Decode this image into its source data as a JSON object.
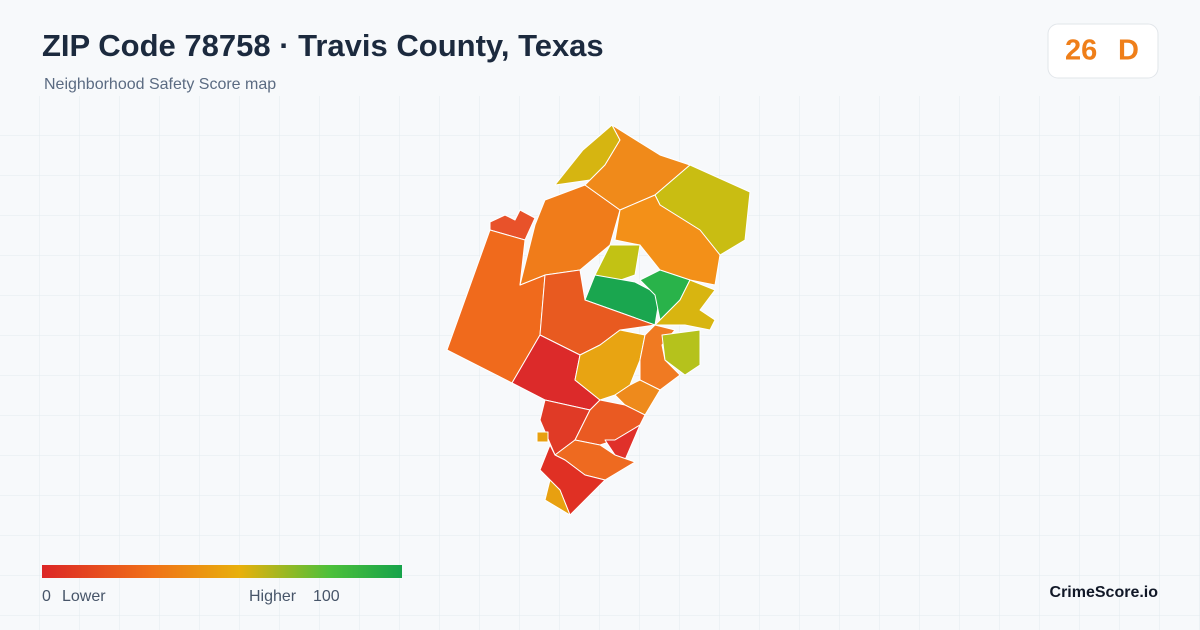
{
  "header": {
    "title": "ZIP Code 78758 · Travis County, Texas",
    "subtitle": "Neighborhood Safety Score map"
  },
  "score": {
    "value": 26,
    "grade": "D"
  },
  "legend": {
    "min": 0,
    "min_label": "Lower",
    "max_label": "Higher",
    "max": 100
  },
  "brand": "CrimeScore.io"
}
